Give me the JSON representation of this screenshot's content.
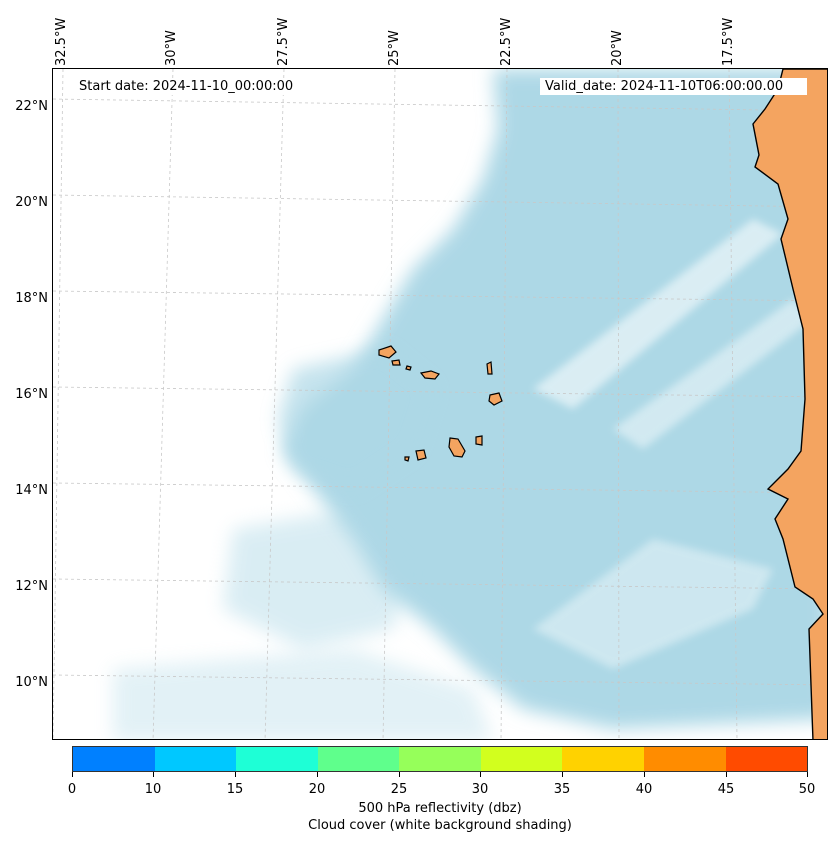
{
  "map": {
    "start_date_text": "Start date: 2024-11-10_00:00:00",
    "valid_date_text": "Valid_date: 2024-11-10T06:00:00.00",
    "longitude_labels": [
      "32.5°W",
      "30°W",
      "27.5°W",
      "25°W",
      "22.5°W",
      "20°W",
      "17.5°W"
    ],
    "latitude_labels": [
      "22°N",
      "20°N",
      "18°N",
      "16°N",
      "14°N",
      "12°N",
      "10°N"
    ],
    "land_color": "#f4a460",
    "cloud_color": "#add8e6",
    "gridline_color": "#c8c8c8"
  },
  "colorbar": {
    "tick_labels": [
      "0",
      "10",
      "15",
      "20",
      "25",
      "30",
      "35",
      "40",
      "45",
      "50"
    ],
    "segment_colors": [
      "#0080ff",
      "#00c8ff",
      "#1effd6",
      "#5fff8c",
      "#96ff5a",
      "#d2ff1e",
      "#ffd200",
      "#ff8c00",
      "#ff4b00"
    ],
    "label_line1": "500 hPa reflectivity (dbz)",
    "label_line2": "Cloud cover (white background shading)"
  }
}
